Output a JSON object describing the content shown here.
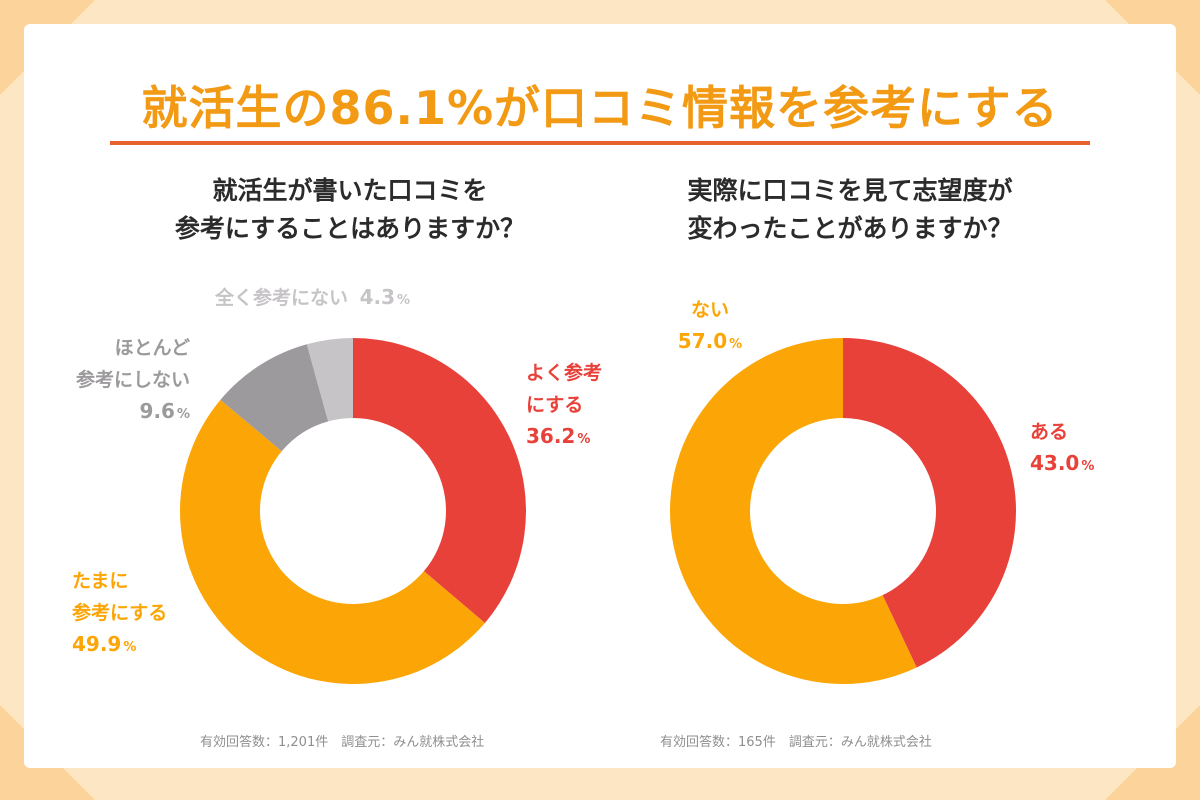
{
  "title": "就活生の86.1%が口コミ情報を参考にする",
  "colors": {
    "accent": "#f29a14",
    "rule": "#e8632c",
    "red": "#e8413a",
    "orange": "#fca506",
    "dark_gray": "#9c9a9c",
    "light_gray": "#c7c4c7"
  },
  "chart_data": [
    {
      "type": "pie",
      "title": "就活生が書いた口コミを\n参考にすることはありますか？",
      "slices": [
        {
          "label": "よく参考\nにする",
          "value": 36.2,
          "color": "#e8413a"
        },
        {
          "label": "たまに\n参考にする",
          "value": 49.9,
          "color": "#fca506"
        },
        {
          "label": "ほとんど\n参考にしない",
          "value": 9.6,
          "color": "#9c9a9c"
        },
        {
          "label": "全く参考にない",
          "value": 4.3,
          "color": "#c7c4c7"
        }
      ],
      "footer": "有効回答数：1,201件　調査元：みん就株式会社"
    },
    {
      "type": "pie",
      "title": "実際に口コミを見て志望度が\n変わったことがありますか？",
      "slices": [
        {
          "label": "ある",
          "value": 43.0,
          "color": "#e8413a"
        },
        {
          "label": "ない",
          "value": 57.0,
          "color": "#fca506"
        }
      ],
      "footer": "有効回答数：165件　調査元：みん就株式会社"
    }
  ],
  "labels": {
    "c1": [
      {
        "text": "よく参考\nにする",
        "value": "36.2",
        "unit": "%"
      },
      {
        "text": "たまに\n参考にする",
        "value": "49.9",
        "unit": "%"
      },
      {
        "text": "ほとんど\n参考にしない",
        "value": "9.6",
        "unit": "%"
      },
      {
        "text": "全く参考にない",
        "value": "4.3",
        "unit": "%"
      }
    ],
    "c2": [
      {
        "text": "ある",
        "value": "43.0",
        "unit": "%"
      },
      {
        "text": "ない",
        "value": "57.0",
        "unit": "%"
      }
    ]
  }
}
